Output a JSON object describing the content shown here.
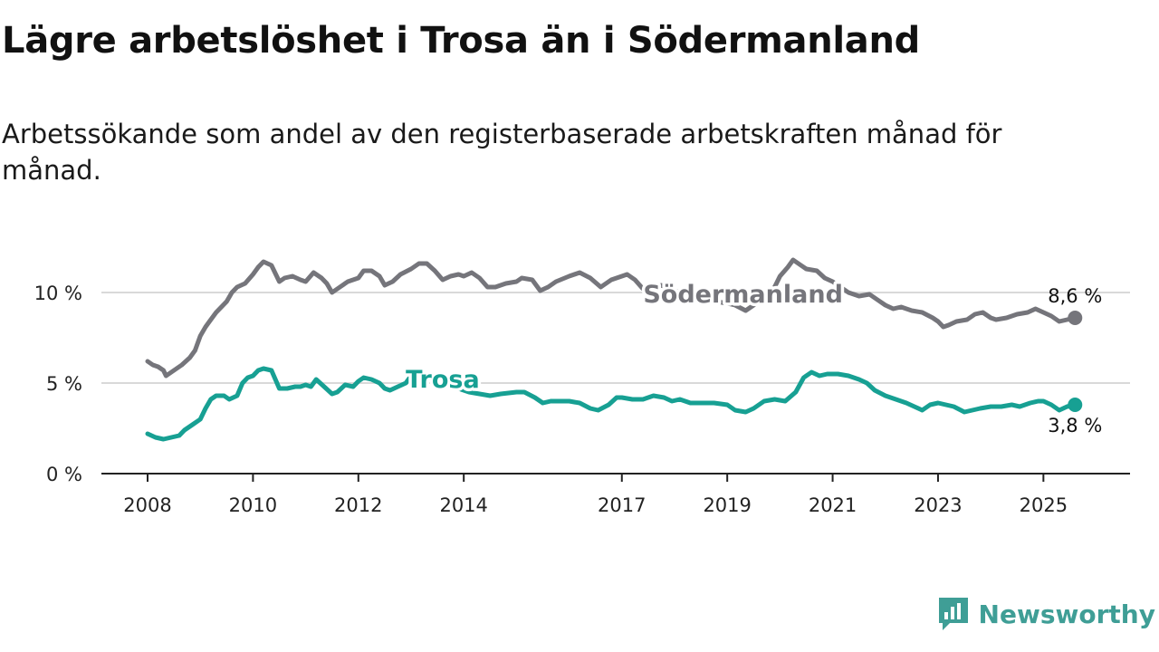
{
  "title": "Lägre arbetslöshet i Trosa än i Södermanland",
  "subtitle": "Arbetssökande som andel av den registerbaserade arbetskraften månad för månad.",
  "brand": {
    "name": "Newsworthy",
    "icon": "newsworthy-logo-icon",
    "color": "#3f9e96"
  },
  "chart_data": {
    "type": "line",
    "xlim": [
      2008.0,
      2025.75
    ],
    "ylim": [
      0,
      13
    ],
    "yticks": [
      {
        "value": 0,
        "label": "0 %"
      },
      {
        "value": 5,
        "label": "5 %"
      },
      {
        "value": 10,
        "label": "10 %"
      }
    ],
    "xticks": [
      {
        "value": 2008,
        "label": "2008"
      },
      {
        "value": 2010,
        "label": "2010"
      },
      {
        "value": 2012,
        "label": "2012"
      },
      {
        "value": 2014,
        "label": "2014"
      },
      {
        "value": 2017,
        "label": "2017"
      },
      {
        "value": 2019,
        "label": "2019"
      },
      {
        "value": 2021,
        "label": "2021"
      },
      {
        "value": 2023,
        "label": "2023"
      },
      {
        "value": 2025,
        "label": "2025"
      }
    ],
    "grid": true,
    "series": [
      {
        "name": "Södermanland",
        "color": "#75757b",
        "end_label": "8,6 %",
        "points": [
          [
            2008.0,
            6.2
          ],
          [
            2008.1,
            6.0
          ],
          [
            2008.2,
            5.9
          ],
          [
            2008.3,
            5.7
          ],
          [
            2008.35,
            5.4
          ],
          [
            2008.5,
            5.7
          ],
          [
            2008.65,
            6.0
          ],
          [
            2008.8,
            6.4
          ],
          [
            2008.9,
            6.8
          ],
          [
            2009.0,
            7.6
          ],
          [
            2009.1,
            8.1
          ],
          [
            2009.2,
            8.5
          ],
          [
            2009.3,
            8.9
          ],
          [
            2009.4,
            9.2
          ],
          [
            2009.5,
            9.5
          ],
          [
            2009.6,
            10.0
          ],
          [
            2009.7,
            10.3
          ],
          [
            2009.85,
            10.5
          ],
          [
            2010.0,
            11.0
          ],
          [
            2010.1,
            11.4
          ],
          [
            2010.2,
            11.7
          ],
          [
            2010.35,
            11.5
          ],
          [
            2010.5,
            10.6
          ],
          [
            2010.6,
            10.8
          ],
          [
            2010.75,
            10.9
          ],
          [
            2010.9,
            10.7
          ],
          [
            2011.0,
            10.6
          ],
          [
            2011.15,
            11.1
          ],
          [
            2011.3,
            10.8
          ],
          [
            2011.4,
            10.5
          ],
          [
            2011.5,
            10.0
          ],
          [
            2011.65,
            10.3
          ],
          [
            2011.8,
            10.6
          ],
          [
            2012.0,
            10.8
          ],
          [
            2012.1,
            11.2
          ],
          [
            2012.25,
            11.2
          ],
          [
            2012.4,
            10.9
          ],
          [
            2012.5,
            10.4
          ],
          [
            2012.65,
            10.6
          ],
          [
            2012.8,
            11.0
          ],
          [
            2013.0,
            11.3
          ],
          [
            2013.15,
            11.6
          ],
          [
            2013.3,
            11.6
          ],
          [
            2013.45,
            11.2
          ],
          [
            2013.6,
            10.7
          ],
          [
            2013.75,
            10.9
          ],
          [
            2013.9,
            11.0
          ],
          [
            2014.0,
            10.9
          ],
          [
            2014.15,
            11.1
          ],
          [
            2014.3,
            10.8
          ],
          [
            2014.45,
            10.3
          ],
          [
            2014.6,
            10.3
          ],
          [
            2014.8,
            10.5
          ],
          [
            2015.0,
            10.6
          ],
          [
            2015.1,
            10.8
          ],
          [
            2015.3,
            10.7
          ],
          [
            2015.45,
            10.1
          ],
          [
            2015.6,
            10.3
          ],
          [
            2015.75,
            10.6
          ],
          [
            2016.0,
            10.9
          ],
          [
            2016.2,
            11.1
          ],
          [
            2016.4,
            10.8
          ],
          [
            2016.6,
            10.3
          ],
          [
            2016.8,
            10.7
          ],
          [
            2017.0,
            10.9
          ],
          [
            2017.1,
            11.0
          ],
          [
            2017.25,
            10.7
          ],
          [
            2017.4,
            10.2
          ],
          [
            2017.6,
            10.3
          ],
          [
            2017.75,
            10.4
          ],
          [
            2018.0,
            10.1
          ],
          [
            2018.3,
            9.9
          ],
          [
            2018.6,
            9.6
          ],
          [
            2019.0,
            9.4
          ],
          [
            2019.15,
            9.3
          ],
          [
            2019.35,
            9.0
          ],
          [
            2019.5,
            9.3
          ],
          [
            2019.7,
            9.8
          ],
          [
            2019.9,
            10.3
          ],
          [
            2020.0,
            10.9
          ],
          [
            2020.15,
            11.4
          ],
          [
            2020.25,
            11.8
          ],
          [
            2020.4,
            11.5
          ],
          [
            2020.5,
            11.3
          ],
          [
            2020.7,
            11.2
          ],
          [
            2020.85,
            10.8
          ],
          [
            2021.0,
            10.6
          ],
          [
            2021.15,
            10.3
          ],
          [
            2021.3,
            10.0
          ],
          [
            2021.5,
            9.8
          ],
          [
            2021.7,
            9.9
          ],
          [
            2021.85,
            9.6
          ],
          [
            2022.0,
            9.3
          ],
          [
            2022.15,
            9.1
          ],
          [
            2022.3,
            9.2
          ],
          [
            2022.5,
            9.0
          ],
          [
            2022.7,
            8.9
          ],
          [
            2022.9,
            8.6
          ],
          [
            2023.0,
            8.4
          ],
          [
            2023.1,
            8.1
          ],
          [
            2023.2,
            8.2
          ],
          [
            2023.35,
            8.4
          ],
          [
            2023.55,
            8.5
          ],
          [
            2023.7,
            8.8
          ],
          [
            2023.85,
            8.9
          ],
          [
            2024.0,
            8.6
          ],
          [
            2024.1,
            8.5
          ],
          [
            2024.3,
            8.6
          ],
          [
            2024.5,
            8.8
          ],
          [
            2024.7,
            8.9
          ],
          [
            2024.85,
            9.1
          ],
          [
            2025.0,
            8.9
          ],
          [
            2025.15,
            8.7
          ],
          [
            2025.3,
            8.4
          ],
          [
            2025.45,
            8.5
          ],
          [
            2025.6,
            8.6
          ]
        ]
      },
      {
        "name": "Trosa",
        "color": "#17a093",
        "end_label": "3,8 %",
        "points": [
          [
            2008.0,
            2.2
          ],
          [
            2008.15,
            2.0
          ],
          [
            2008.3,
            1.9
          ],
          [
            2008.45,
            2.0
          ],
          [
            2008.6,
            2.1
          ],
          [
            2008.7,
            2.4
          ],
          [
            2008.85,
            2.7
          ],
          [
            2009.0,
            3.0
          ],
          [
            2009.1,
            3.6
          ],
          [
            2009.2,
            4.1
          ],
          [
            2009.3,
            4.3
          ],
          [
            2009.45,
            4.3
          ],
          [
            2009.55,
            4.1
          ],
          [
            2009.7,
            4.3
          ],
          [
            2009.8,
            5.0
          ],
          [
            2009.9,
            5.3
          ],
          [
            2010.0,
            5.4
          ],
          [
            2010.1,
            5.7
          ],
          [
            2010.2,
            5.8
          ],
          [
            2010.35,
            5.7
          ],
          [
            2010.5,
            4.7
          ],
          [
            2010.65,
            4.7
          ],
          [
            2010.8,
            4.8
          ],
          [
            2010.9,
            4.8
          ],
          [
            2011.0,
            4.9
          ],
          [
            2011.1,
            4.8
          ],
          [
            2011.2,
            5.2
          ],
          [
            2011.35,
            4.8
          ],
          [
            2011.5,
            4.4
          ],
          [
            2011.6,
            4.5
          ],
          [
            2011.75,
            4.9
          ],
          [
            2011.9,
            4.8
          ],
          [
            2012.0,
            5.1
          ],
          [
            2012.1,
            5.3
          ],
          [
            2012.25,
            5.2
          ],
          [
            2012.4,
            5.0
          ],
          [
            2012.5,
            4.7
          ],
          [
            2012.6,
            4.6
          ],
          [
            2012.75,
            4.8
          ],
          [
            2012.9,
            5.0
          ],
          [
            2013.0,
            5.4
          ],
          [
            2013.1,
            5.6
          ],
          [
            2013.2,
            5.6
          ],
          [
            2013.3,
            5.4
          ],
          [
            2013.5,
            5.1
          ],
          [
            2013.7,
            4.9
          ],
          [
            2013.9,
            4.7
          ],
          [
            2014.1,
            4.5
          ],
          [
            2014.3,
            4.4
          ],
          [
            2014.5,
            4.3
          ],
          [
            2014.7,
            4.4
          ],
          [
            2015.0,
            4.5
          ],
          [
            2015.15,
            4.5
          ],
          [
            2015.35,
            4.2
          ],
          [
            2015.5,
            3.9
          ],
          [
            2015.65,
            4.0
          ],
          [
            2015.8,
            4.0
          ],
          [
            2016.0,
            4.0
          ],
          [
            2016.2,
            3.9
          ],
          [
            2016.4,
            3.6
          ],
          [
            2016.55,
            3.5
          ],
          [
            2016.75,
            3.8
          ],
          [
            2016.9,
            4.2
          ],
          [
            2017.0,
            4.2
          ],
          [
            2017.2,
            4.1
          ],
          [
            2017.4,
            4.1
          ],
          [
            2017.6,
            4.3
          ],
          [
            2017.8,
            4.2
          ],
          [
            2017.95,
            4.0
          ],
          [
            2018.1,
            4.1
          ],
          [
            2018.3,
            3.9
          ],
          [
            2018.5,
            3.9
          ],
          [
            2018.75,
            3.9
          ],
          [
            2019.0,
            3.8
          ],
          [
            2019.15,
            3.5
          ],
          [
            2019.35,
            3.4
          ],
          [
            2019.5,
            3.6
          ],
          [
            2019.7,
            4.0
          ],
          [
            2019.9,
            4.1
          ],
          [
            2020.1,
            4.0
          ],
          [
            2020.3,
            4.5
          ],
          [
            2020.45,
            5.3
          ],
          [
            2020.6,
            5.6
          ],
          [
            2020.75,
            5.4
          ],
          [
            2020.9,
            5.5
          ],
          [
            2021.1,
            5.5
          ],
          [
            2021.3,
            5.4
          ],
          [
            2021.5,
            5.2
          ],
          [
            2021.65,
            5.0
          ],
          [
            2021.8,
            4.6
          ],
          [
            2022.0,
            4.3
          ],
          [
            2022.2,
            4.1
          ],
          [
            2022.4,
            3.9
          ],
          [
            2022.55,
            3.7
          ],
          [
            2022.7,
            3.5
          ],
          [
            2022.85,
            3.8
          ],
          [
            2023.0,
            3.9
          ],
          [
            2023.15,
            3.8
          ],
          [
            2023.3,
            3.7
          ],
          [
            2023.5,
            3.4
          ],
          [
            2023.65,
            3.5
          ],
          [
            2023.8,
            3.6
          ],
          [
            2024.0,
            3.7
          ],
          [
            2024.2,
            3.7
          ],
          [
            2024.4,
            3.8
          ],
          [
            2024.55,
            3.7
          ],
          [
            2024.75,
            3.9
          ],
          [
            2024.9,
            4.0
          ],
          [
            2025.0,
            4.0
          ],
          [
            2025.15,
            3.8
          ],
          [
            2025.3,
            3.5
          ],
          [
            2025.45,
            3.7
          ],
          [
            2025.6,
            3.8
          ]
        ]
      }
    ],
    "series_labels": [
      {
        "series": "Södermanland",
        "text": "Södermanland",
        "x": 2019.3,
        "y": 9.9
      },
      {
        "series": "Trosa",
        "text": "Trosa",
        "x": 2013.6,
        "y": 5.2
      }
    ]
  }
}
